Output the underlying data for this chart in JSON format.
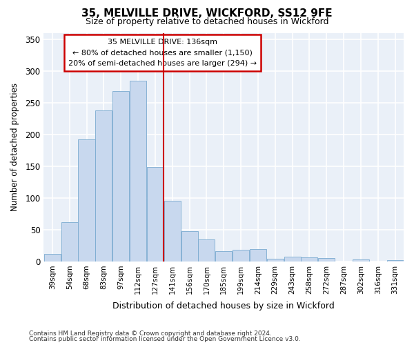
{
  "title1": "35, MELVILLE DRIVE, WICKFORD, SS12 9FE",
  "title2": "Size of property relative to detached houses in Wickford",
  "xlabel": "Distribution of detached houses by size in Wickford",
  "ylabel": "Number of detached properties",
  "categories": [
    "39sqm",
    "54sqm",
    "68sqm",
    "83sqm",
    "97sqm",
    "112sqm",
    "127sqm",
    "141sqm",
    "156sqm",
    "170sqm",
    "185sqm",
    "199sqm",
    "214sqm",
    "229sqm",
    "243sqm",
    "258sqm",
    "272sqm",
    "287sqm",
    "302sqm",
    "316sqm",
    "331sqm"
  ],
  "values": [
    12,
    62,
    192,
    238,
    268,
    285,
    149,
    96,
    48,
    35,
    16,
    18,
    19,
    4,
    8,
    6,
    5,
    0,
    3,
    0,
    2
  ],
  "bar_color": "#c8d8ee",
  "bar_edge_color": "#7aaad0",
  "annotation_text_line1": "35 MELVILLE DRIVE: 136sqm",
  "annotation_text_line2": "← 80% of detached houses are smaller (1,150)",
  "annotation_text_line3": "20% of semi-detached houses are larger (294) →",
  "annotation_box_facecolor": "#ffffff",
  "annotation_box_edgecolor": "#cc0000",
  "vline_color": "#cc0000",
  "footnote1": "Contains HM Land Registry data © Crown copyright and database right 2024.",
  "footnote2": "Contains public sector information licensed under the Open Government Licence v3.0.",
  "ylim": [
    0,
    360
  ],
  "background_color": "#ffffff",
  "plot_bg_color": "#eaf0f8",
  "grid_color": "#ffffff",
  "yticks": [
    0,
    50,
    100,
    150,
    200,
    250,
    300,
    350
  ]
}
